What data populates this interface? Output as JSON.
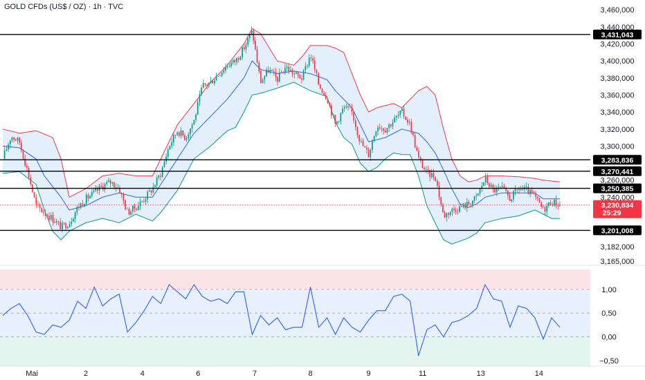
{
  "chart_data": {
    "type": "candlestick",
    "title": "GOLD CFDs (US$ / OZ) · 1h · TVC",
    "price_axis": {
      "ylim": [
        3160000,
        3465000
      ],
      "ticks": [
        {
          "value": 3460000,
          "label": "3,460,000"
        },
        {
          "value": 3440000,
          "label": "3,440,000"
        },
        {
          "value": 3420000,
          "label": "3,420,000"
        },
        {
          "value": 3400000,
          "label": "3,400,000"
        },
        {
          "value": 3380000,
          "label": "3,380,000"
        },
        {
          "value": 3360000,
          "label": "3,360,000"
        },
        {
          "value": 3340000,
          "label": "3,340,000"
        },
        {
          "value": 3320000,
          "label": "3,320,000"
        },
        {
          "value": 3300000,
          "label": "3,300,000"
        },
        {
          "value": 3260000,
          "label": "3,260,000"
        },
        {
          "value": 3240000,
          "label": "3,240,000"
        },
        {
          "value": 3182000,
          "label": "3,182,000"
        },
        {
          "value": 3165000,
          "label": "3,165,000"
        }
      ]
    },
    "levels": [
      {
        "value": 3431043,
        "label": "3,431,043"
      },
      {
        "value": 3283836,
        "label": "3,283,836"
      },
      {
        "value": 3270441,
        "label": "3,270,441"
      },
      {
        "value": 3250385,
        "label": "3,250,385"
      },
      {
        "value": 3201008,
        "label": "3,201,008"
      }
    ],
    "current_price": {
      "value": 3230834,
      "label": "3,230,834",
      "countdown": "25:29"
    },
    "x_axis": {
      "range": [
        0,
        68
      ],
      "ticks": [
        {
          "pos": 3.5,
          "label": "Mai"
        },
        {
          "pos": 10,
          "label": "2"
        },
        {
          "pos": 16.8,
          "label": "4"
        },
        {
          "pos": 23.5,
          "label": "6"
        },
        {
          "pos": 30.3,
          "label": "7"
        },
        {
          "pos": 37,
          "label": "8"
        },
        {
          "pos": 44,
          "label": "9"
        },
        {
          "pos": 50.5,
          "label": "11"
        },
        {
          "pos": 57.5,
          "label": "13"
        },
        {
          "pos": 64.5,
          "label": "14"
        }
      ]
    },
    "price_path": [
      [
        0,
        3285000
      ],
      [
        1,
        3312000
      ],
      [
        2,
        3305000
      ],
      [
        3,
        3270000
      ],
      [
        4,
        3230000
      ],
      [
        5,
        3222000
      ],
      [
        6,
        3215000
      ],
      [
        7,
        3205000
      ],
      [
        8,
        3210000
      ],
      [
        9,
        3228000
      ],
      [
        10,
        3238000
      ],
      [
        11,
        3245000
      ],
      [
        12,
        3253000
      ],
      [
        13,
        3258000
      ],
      [
        14,
        3250000
      ],
      [
        15,
        3222000
      ],
      [
        16,
        3228000
      ],
      [
        17,
        3238000
      ],
      [
        18,
        3250000
      ],
      [
        19,
        3268000
      ],
      [
        20,
        3300000
      ],
      [
        21,
        3318000
      ],
      [
        22,
        3310000
      ],
      [
        23,
        3330000
      ],
      [
        24,
        3370000
      ],
      [
        25,
        3375000
      ],
      [
        26,
        3385000
      ],
      [
        27,
        3395000
      ],
      [
        28,
        3400000
      ],
      [
        29,
        3415000
      ],
      [
        30,
        3435000
      ],
      [
        31,
        3375000
      ],
      [
        32,
        3390000
      ],
      [
        33,
        3378000
      ],
      [
        34,
        3393000
      ],
      [
        35,
        3385000
      ],
      [
        36,
        3380000
      ],
      [
        37,
        3408000
      ],
      [
        38,
        3372000
      ],
      [
        39,
        3357000
      ],
      [
        40,
        3325000
      ],
      [
        41,
        3345000
      ],
      [
        42,
        3340000
      ],
      [
        43,
        3305000
      ],
      [
        44,
        3290000
      ],
      [
        45,
        3325000
      ],
      [
        46,
        3320000
      ],
      [
        47,
        3330000
      ],
      [
        48,
        3340000
      ],
      [
        49,
        3325000
      ],
      [
        50,
        3285000
      ],
      [
        51,
        3268000
      ],
      [
        52,
        3265000
      ],
      [
        53,
        3218000
      ],
      [
        54,
        3225000
      ],
      [
        55,
        3228000
      ],
      [
        56,
        3232000
      ],
      [
        57,
        3240000
      ],
      [
        58,
        3262000
      ],
      [
        59,
        3248000
      ],
      [
        60,
        3250000
      ],
      [
        61,
        3238000
      ],
      [
        62,
        3250000
      ],
      [
        63,
        3248000
      ],
      [
        64,
        3240000
      ],
      [
        65,
        3225000
      ],
      [
        66,
        3235000
      ],
      [
        67,
        3230834
      ]
    ],
    "bollinger": {
      "upper": [
        [
          0,
          3320000
        ],
        [
          2,
          3315000
        ],
        [
          4,
          3318000
        ],
        [
          6,
          3310000
        ],
        [
          7,
          3285000
        ],
        [
          8,
          3240000
        ],
        [
          10,
          3250000
        ],
        [
          12,
          3265000
        ],
        [
          14,
          3268000
        ],
        [
          16,
          3265000
        ],
        [
          18,
          3265000
        ],
        [
          19,
          3285000
        ],
        [
          21,
          3325000
        ],
        [
          23,
          3350000
        ],
        [
          25,
          3375000
        ],
        [
          27,
          3395000
        ],
        [
          29,
          3420000
        ],
        [
          30,
          3438000
        ],
        [
          31,
          3432000
        ],
        [
          33,
          3400000
        ],
        [
          35,
          3395000
        ],
        [
          36,
          3405000
        ],
        [
          37,
          3418000
        ],
        [
          39,
          3418000
        ],
        [
          40,
          3415000
        ],
        [
          41,
          3410000
        ],
        [
          42,
          3385000
        ],
        [
          43,
          3360000
        ],
        [
          44,
          3340000
        ],
        [
          45,
          3345000
        ],
        [
          47,
          3350000
        ],
        [
          48,
          3345000
        ],
        [
          49,
          3355000
        ],
        [
          50,
          3365000
        ],
        [
          51,
          3370000
        ],
        [
          52,
          3360000
        ],
        [
          53,
          3320000
        ],
        [
          54,
          3285000
        ],
        [
          55,
          3265000
        ],
        [
          56,
          3258000
        ],
        [
          57,
          3260000
        ],
        [
          58,
          3265000
        ],
        [
          60,
          3265000
        ],
        [
          62,
          3264000
        ],
        [
          64,
          3262000
        ],
        [
          65,
          3260000
        ],
        [
          66,
          3259000
        ],
        [
          67,
          3258000
        ]
      ],
      "middle": [
        [
          0,
          3300000
        ],
        [
          2,
          3298000
        ],
        [
          4,
          3285000
        ],
        [
          5,
          3265000
        ],
        [
          7,
          3240000
        ],
        [
          8,
          3225000
        ],
        [
          10,
          3230000
        ],
        [
          12,
          3240000
        ],
        [
          14,
          3245000
        ],
        [
          16,
          3240000
        ],
        [
          18,
          3240000
        ],
        [
          19,
          3255000
        ],
        [
          21,
          3285000
        ],
        [
          23,
          3315000
        ],
        [
          25,
          3335000
        ],
        [
          27,
          3355000
        ],
        [
          29,
          3380000
        ],
        [
          30,
          3400000
        ],
        [
          31,
          3390000
        ],
        [
          33,
          3385000
        ],
        [
          35,
          3388000
        ],
        [
          37,
          3385000
        ],
        [
          39,
          3378000
        ],
        [
          40,
          3365000
        ],
        [
          42,
          3345000
        ],
        [
          43,
          3325000
        ],
        [
          44,
          3305000
        ],
        [
          46,
          3310000
        ],
        [
          48,
          3320000
        ],
        [
          50,
          3315000
        ],
        [
          51,
          3305000
        ],
        [
          52,
          3292000
        ],
        [
          53,
          3272000
        ],
        [
          54,
          3250000
        ],
        [
          55,
          3232000
        ],
        [
          56,
          3228000
        ],
        [
          57,
          3232000
        ],
        [
          58,
          3240000
        ],
        [
          60,
          3245000
        ],
        [
          62,
          3245000
        ],
        [
          64,
          3245000
        ],
        [
          65,
          3238000
        ],
        [
          66,
          3238000
        ],
        [
          67,
          3238000
        ]
      ],
      "lower": [
        [
          0,
          3268000
        ],
        [
          2,
          3270000
        ],
        [
          4,
          3255000
        ],
        [
          5,
          3225000
        ],
        [
          6,
          3200000
        ],
        [
          7,
          3190000
        ],
        [
          8,
          3200000
        ],
        [
          10,
          3210000
        ],
        [
          12,
          3215000
        ],
        [
          14,
          3210000
        ],
        [
          16,
          3220000
        ],
        [
          18,
          3212000
        ],
        [
          19,
          3222000
        ],
        [
          21,
          3248000
        ],
        [
          23,
          3285000
        ],
        [
          25,
          3300000
        ],
        [
          27,
          3318000
        ],
        [
          28,
          3322000
        ],
        [
          29,
          3340000
        ],
        [
          30,
          3360000
        ],
        [
          31,
          3362000
        ],
        [
          33,
          3368000
        ],
        [
          35,
          3375000
        ],
        [
          37,
          3365000
        ],
        [
          39,
          3358000
        ],
        [
          40,
          3328000
        ],
        [
          41,
          3310000
        ],
        [
          42,
          3302000
        ],
        [
          43,
          3280000
        ],
        [
          44,
          3270000
        ],
        [
          45,
          3275000
        ],
        [
          46,
          3285000
        ],
        [
          47,
          3292000
        ],
        [
          48,
          3290000
        ],
        [
          49,
          3290000
        ],
        [
          50,
          3265000
        ],
        [
          51,
          3230000
        ],
        [
          52,
          3210000
        ],
        [
          53,
          3190000
        ],
        [
          54,
          3185000
        ],
        [
          56,
          3192000
        ],
        [
          57,
          3198000
        ],
        [
          58,
          3210000
        ],
        [
          60,
          3215000
        ],
        [
          62,
          3218000
        ],
        [
          64,
          3225000
        ],
        [
          65,
          3220000
        ],
        [
          66,
          3215000
        ],
        [
          67,
          3215000
        ]
      ]
    },
    "oscillator": {
      "ylim": [
        -0.62,
        1.42
      ],
      "ticks": [
        {
          "value": 1.0,
          "label": "1,00"
        },
        {
          "value": 0.5,
          "label": "0,50"
        },
        {
          "value": 0.0,
          "label": "0,00"
        },
        {
          "value": -0.5,
          "label": "−0,50"
        }
      ],
      "guides": [
        1.0,
        0.5,
        0.0
      ],
      "values": [
        [
          0,
          0.45
        ],
        [
          1,
          0.6
        ],
        [
          2,
          0.7
        ],
        [
          3,
          0.45
        ],
        [
          4,
          0.1
        ],
        [
          5,
          0.05
        ],
        [
          6,
          0.25
        ],
        [
          7,
          0.2
        ],
        [
          8,
          0.35
        ],
        [
          9,
          0.75
        ],
        [
          10,
          0.6
        ],
        [
          11,
          1.05
        ],
        [
          12,
          0.65
        ],
        [
          13,
          0.8
        ],
        [
          14,
          0.9
        ],
        [
          15,
          0.1
        ],
        [
          16,
          0.3
        ],
        [
          17,
          0.55
        ],
        [
          18,
          0.85
        ],
        [
          19,
          0.7
        ],
        [
          20,
          1.1
        ],
        [
          21,
          0.95
        ],
        [
          22,
          0.8
        ],
        [
          23,
          1.1
        ],
        [
          24,
          0.85
        ],
        [
          25,
          0.75
        ],
        [
          26,
          0.8
        ],
        [
          27,
          0.7
        ],
        [
          28,
          0.95
        ],
        [
          29,
          0.95
        ],
        [
          30,
          0.05
        ],
        [
          31,
          0.45
        ],
        [
          32,
          0.25
        ],
        [
          33,
          0.4
        ],
        [
          34,
          0.15
        ],
        [
          35,
          0.2
        ],
        [
          36,
          0.2
        ],
        [
          37,
          1.05
        ],
        [
          38,
          0.2
        ],
        [
          39,
          0.4
        ],
        [
          40,
          0.05
        ],
        [
          41,
          0.4
        ],
        [
          42,
          0.2
        ],
        [
          43,
          0.1
        ],
        [
          44,
          0.35
        ],
        [
          45,
          0.55
        ],
        [
          46,
          0.55
        ],
        [
          47,
          0.85
        ],
        [
          48,
          0.9
        ],
        [
          49,
          0.75
        ],
        [
          50,
          -0.4
        ],
        [
          51,
          0.15
        ],
        [
          52,
          0.25
        ],
        [
          53,
          0.0
        ],
        [
          54,
          0.3
        ],
        [
          55,
          0.35
        ],
        [
          56,
          0.45
        ],
        [
          57,
          0.6
        ],
        [
          58,
          1.1
        ],
        [
          59,
          0.8
        ],
        [
          60,
          0.75
        ],
        [
          61,
          0.2
        ],
        [
          62,
          0.65
        ],
        [
          63,
          0.6
        ],
        [
          64,
          0.4
        ],
        [
          65,
          -0.05
        ],
        [
          66,
          0.4
        ],
        [
          67,
          0.2
        ]
      ]
    },
    "colors": {
      "up": "#089981",
      "down": "#f23645",
      "bb_upper": "#f23645",
      "bb_middle": "#2962ff",
      "bb_lower": "#089981",
      "bb_fill": "#e3f0fb",
      "osc_line": "#2962ff",
      "osc_high_bg": "#fde4e6",
      "osc_mid_bg": "#e8effd",
      "osc_low_bg": "#e4f5ef",
      "level_line": "#000000",
      "current": "#f23645"
    }
  }
}
